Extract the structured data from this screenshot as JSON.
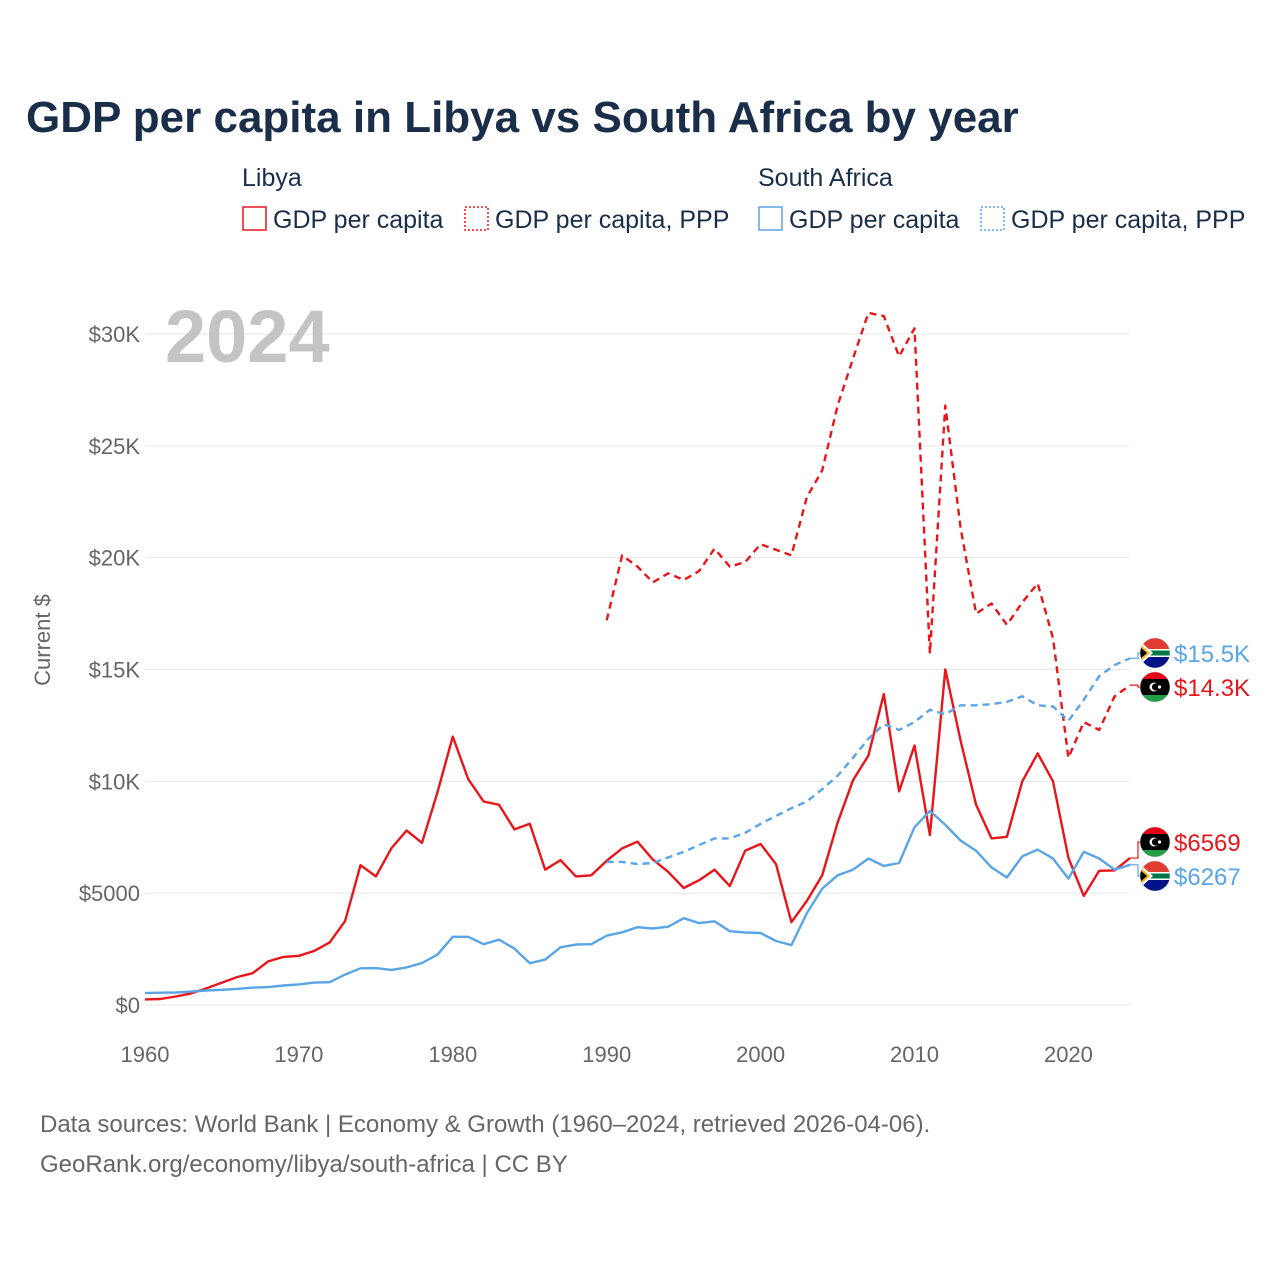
{
  "title": "GDP per capita in Libya vs South Africa by year",
  "legend": {
    "groups": [
      {
        "name": "Libya",
        "items": [
          "GDP per capita",
          "GDP per capita, PPP"
        ],
        "color": "#e8161b"
      },
      {
        "name": "South Africa",
        "items": [
          "GDP per capita",
          "GDP per capita, PPP"
        ],
        "color": "#5aa5e6"
      }
    ]
  },
  "year_overlay": "2024",
  "source_lines": [
    "Data sources: World Bank | Economy & Growth (1960–2024, retrieved 2026-04-06).",
    "GeoRank.org/economy/libya/south-africa | CC BY"
  ],
  "end_labels": [
    {
      "text": "$15.5K",
      "country": "South Africa",
      "color": "#5aa5e6"
    },
    {
      "text": "$14.3K",
      "country": "Libya",
      "color": "#e8161b"
    },
    {
      "text": "$6569",
      "country": "Libya",
      "color": "#e8161b"
    },
    {
      "text": "$6267",
      "country": "South Africa",
      "color": "#5aa5e6"
    }
  ],
  "chart_data": {
    "type": "line",
    "ylabel": "Current $",
    "xlabel": "",
    "xlim": [
      1960,
      2024
    ],
    "ylim": [
      0,
      32000
    ],
    "x_ticks": [
      1960,
      1970,
      1980,
      1990,
      2000,
      2010,
      2020
    ],
    "x_tick_labels": [
      "1960",
      "1970",
      "1980",
      "1990",
      "2000",
      "2010",
      "2020"
    ],
    "y_ticks": [
      0,
      5000,
      10000,
      15000,
      20000,
      25000,
      30000
    ],
    "y_tick_labels": [
      "$0",
      "$5000",
      "$10K",
      "$15K",
      "$20K",
      "$25K",
      "$30K"
    ],
    "series": [
      {
        "name": "Libya GDP per capita",
        "color": "#e8161b",
        "style": "solid",
        "x": [
          1960,
          1961,
          1962,
          1963,
          1964,
          1965,
          1966,
          1967,
          1968,
          1969,
          1970,
          1971,
          1972,
          1973,
          1974,
          1975,
          1976,
          1977,
          1978,
          1979,
          1980,
          1981,
          1982,
          1983,
          1984,
          1985,
          1986,
          1987,
          1988,
          1989,
          1990,
          1991,
          1992,
          1993,
          1994,
          1995,
          1996,
          1997,
          1998,
          1999,
          2000,
          2001,
          2002,
          2003,
          2004,
          2005,
          2006,
          2007,
          2008,
          2009,
          2010,
          2011,
          2012,
          2013,
          2014,
          2015,
          2016,
          2017,
          2018,
          2019,
          2020,
          2021,
          2022,
          2023,
          2024
        ],
        "values": [
          250,
          270,
          380,
          520,
          750,
          1000,
          1250,
          1420,
          1950,
          2150,
          2200,
          2420,
          2800,
          3750,
          6250,
          5750,
          7000,
          7800,
          7250,
          9500,
          12000,
          10100,
          9100,
          8950,
          7850,
          8100,
          6050,
          6480,
          5750,
          5800,
          6450,
          7000,
          7300,
          6500,
          5950,
          5230,
          5580,
          6050,
          5320,
          6900,
          7200,
          6300,
          3700,
          4650,
          5800,
          8150,
          10050,
          11150,
          13900,
          9550,
          11600,
          7600,
          15000,
          11800,
          8950,
          7450,
          7520,
          10000,
          11250,
          10000,
          6580,
          4880,
          6000,
          6020,
          6569
        ]
      },
      {
        "name": "Libya GDP per capita, PPP",
        "color": "#e8161b",
        "style": "dashed",
        "x": [
          1990,
          1991,
          1992,
          1993,
          1994,
          1995,
          1996,
          1997,
          1998,
          1999,
          2000,
          2001,
          2002,
          2003,
          2004,
          2005,
          2006,
          2007,
          2008,
          2009,
          2010,
          2011,
          2012,
          2013,
          2014,
          2015,
          2016,
          2017,
          2018,
          2019,
          2020,
          2021,
          2022,
          2023,
          2024
        ],
        "values": [
          17200,
          20100,
          19600,
          18900,
          19300,
          19000,
          19400,
          20400,
          19600,
          19800,
          20600,
          20350,
          20100,
          22700,
          23900,
          26800,
          28900,
          30950,
          30800,
          29000,
          30250,
          15700,
          26800,
          21300,
          17500,
          17950,
          17000,
          18000,
          18850,
          16400,
          11050,
          12650,
          12300,
          13800,
          14300
        ]
      },
      {
        "name": "South Africa GDP per capita",
        "color": "#5aa5e6",
        "style": "solid",
        "x": [
          1960,
          1961,
          1962,
          1963,
          1964,
          1965,
          1966,
          1967,
          1968,
          1969,
          1970,
          1971,
          1972,
          1973,
          1974,
          1975,
          1976,
          1977,
          1978,
          1979,
          1980,
          1981,
          1982,
          1983,
          1984,
          1985,
          1986,
          1987,
          1988,
          1989,
          1990,
          1991,
          1992,
          1993,
          1994,
          1995,
          1996,
          1997,
          1998,
          1999,
          2000,
          2001,
          2002,
          2003,
          2004,
          2005,
          2006,
          2007,
          2008,
          2009,
          2010,
          2011,
          2012,
          2013,
          2014,
          2015,
          2016,
          2017,
          2018,
          2019,
          2020,
          2021,
          2022,
          2023,
          2024
        ],
        "values": [
          530,
          550,
          560,
          600,
          650,
          680,
          720,
          780,
          800,
          870,
          920,
          1000,
          1020,
          1360,
          1640,
          1650,
          1570,
          1680,
          1880,
          2250,
          3050,
          3050,
          2720,
          2920,
          2520,
          1870,
          2030,
          2580,
          2700,
          2720,
          3100,
          3250,
          3480,
          3420,
          3500,
          3880,
          3660,
          3740,
          3300,
          3240,
          3220,
          2860,
          2680,
          4100,
          5200,
          5800,
          6050,
          6550,
          6220,
          6350,
          7950,
          8680,
          8050,
          7350,
          6900,
          6150,
          5700,
          6650,
          6950,
          6550,
          5650,
          6850,
          6550,
          6050,
          6267
        ]
      },
      {
        "name": "South Africa GDP per capita, PPP",
        "color": "#5aa5e6",
        "style": "dashed",
        "x": [
          1990,
          1991,
          1992,
          1993,
          1994,
          1995,
          1996,
          1997,
          1998,
          1999,
          2000,
          2001,
          2002,
          2003,
          2004,
          2005,
          2006,
          2007,
          2008,
          2009,
          2010,
          2011,
          2012,
          2013,
          2014,
          2015,
          2016,
          2017,
          2018,
          2019,
          2020,
          2021,
          2022,
          2023,
          2024
        ],
        "values": [
          6400,
          6400,
          6300,
          6350,
          6600,
          6850,
          7150,
          7450,
          7450,
          7700,
          8100,
          8450,
          8800,
          9100,
          9650,
          10250,
          11050,
          11900,
          12550,
          12300,
          12650,
          13200,
          13000,
          13400,
          13400,
          13450,
          13550,
          13800,
          13400,
          13350,
          12700,
          13650,
          14700,
          15200,
          15500
        ]
      }
    ]
  }
}
